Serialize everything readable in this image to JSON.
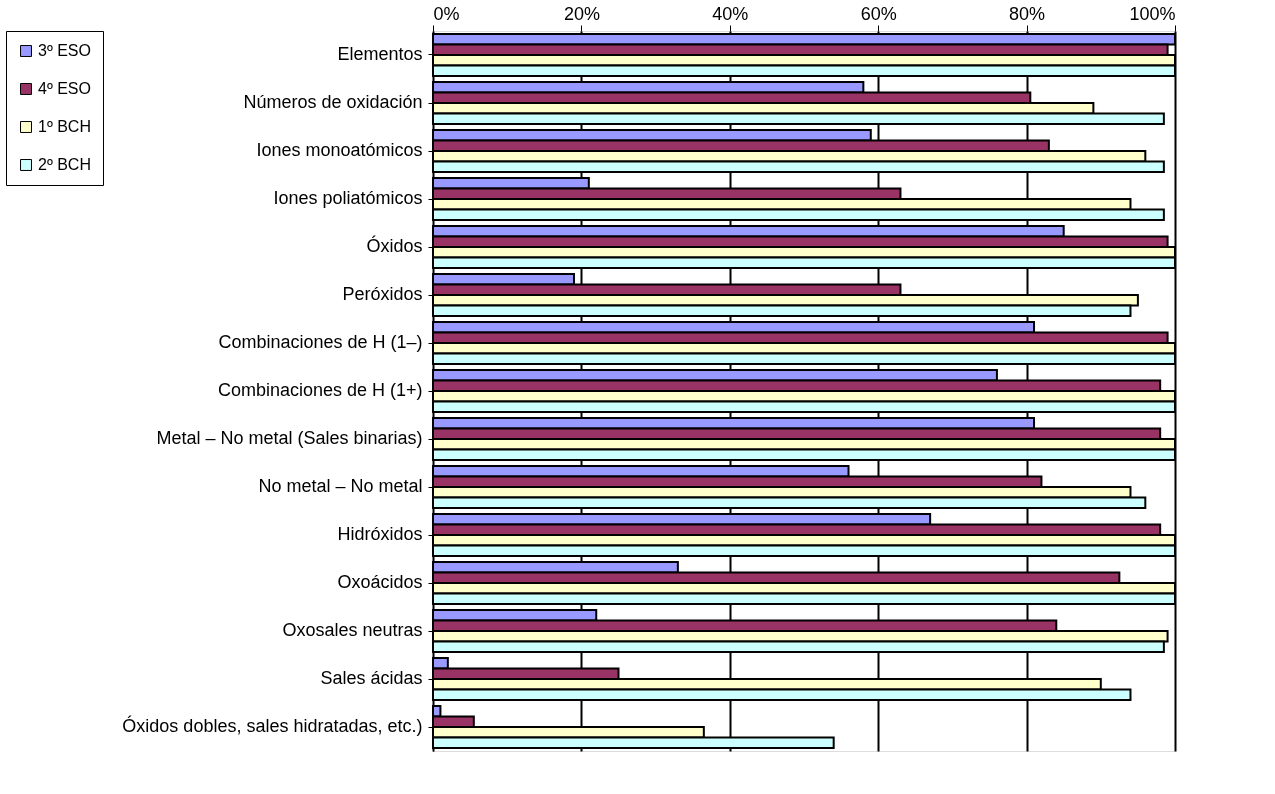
{
  "chart_data": {
    "type": "bar",
    "orientation": "horizontal",
    "categories": [
      "Elementos",
      "Números de oxidación",
      "Iones monoatómicos",
      "Iones poliatómicos",
      "Óxidos",
      "Peróxidos",
      "Combinaciones de H (1–)",
      "Combinaciones de H (1+)",
      "Metal – No metal (Sales binarias)",
      "No metal – No metal",
      "Hidróxidos",
      "Oxoácidos",
      "Oxosales neutras",
      "Sales ácidas",
      "Óxidos dobles, sales hidratadas, etc.)"
    ],
    "series": [
      {
        "name": "3º ESO",
        "color": "#9999ff",
        "values": [
          100,
          58,
          59,
          21,
          85,
          19,
          81,
          76,
          81,
          56,
          67,
          33,
          22,
          2,
          1
        ]
      },
      {
        "name": "4º ESO",
        "color": "#993366",
        "values": [
          99,
          80.5,
          83,
          63,
          99,
          63,
          99,
          98,
          98,
          82,
          98,
          92.5,
          84,
          25,
          5.5
        ]
      },
      {
        "name": "1º BCH",
        "color": "#ffffcc",
        "values": [
          100,
          89,
          96,
          94,
          100,
          95,
          100,
          100,
          100,
          94,
          100,
          100,
          99,
          90,
          36.5
        ]
      },
      {
        "name": "2º BCH",
        "color": "#ccffff",
        "values": [
          100,
          98.5,
          98.5,
          98.5,
          100,
          94,
          100,
          100,
          100,
          96,
          100,
          100,
          98.5,
          94,
          54
        ]
      }
    ],
    "xlim": [
      0,
      100
    ],
    "xticks": [
      {
        "value": 0,
        "label": "0%"
      },
      {
        "value": 20,
        "label": "20%"
      },
      {
        "value": 40,
        "label": "40%"
      },
      {
        "value": 60,
        "label": "60%"
      },
      {
        "value": 80,
        "label": "80%"
      },
      {
        "value": 100,
        "label": "100%"
      }
    ],
    "grid": "x",
    "legend": "top left"
  }
}
